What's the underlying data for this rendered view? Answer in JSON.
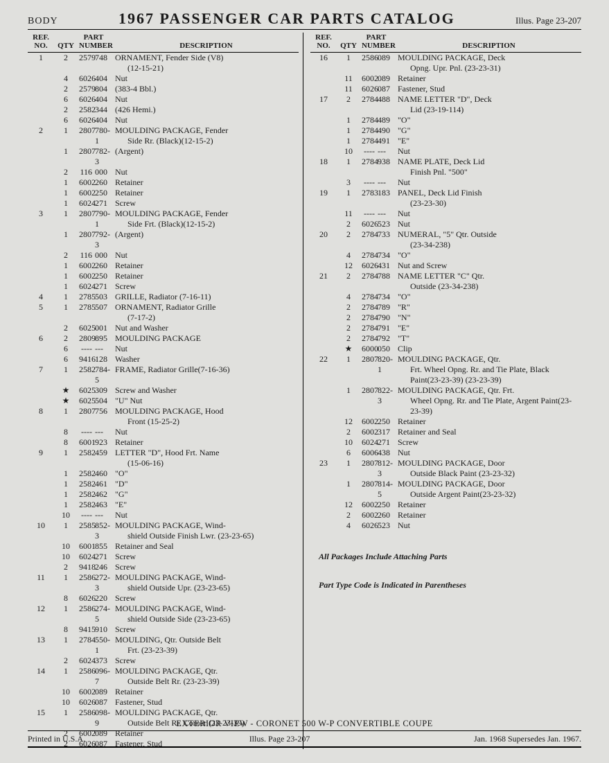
{
  "header": {
    "body_label": "BODY",
    "title": "1967 PASSENGER CAR PARTS CATALOG",
    "illus": "Illus. Page 23-207"
  },
  "table_headers": {
    "ref": "REF. NO.",
    "qty": "QTY",
    "part": "PART NUMBER",
    "desc": "DESCRIPTION"
  },
  "left_rows": [
    {
      "ref": "1",
      "qty": "2",
      "pn1": "2579",
      "pn2": "748",
      "desc": "ORNAMENT, Fender Side (V8)",
      "cont": "(12-15-21)"
    },
    {
      "ref": "",
      "qty": "4",
      "pn1": "6026",
      "pn2": "404",
      "desc": "Nut"
    },
    {
      "ref": "",
      "qty": "2",
      "pn1": "2579",
      "pn2": "804",
      "desc": "(383-4 Bbl.)"
    },
    {
      "ref": "",
      "qty": "6",
      "pn1": "6026",
      "pn2": "404",
      "desc": "Nut"
    },
    {
      "ref": "",
      "qty": "2",
      "pn1": "2582",
      "pn2": "344",
      "desc": "(426 Hemi.)"
    },
    {
      "ref": "",
      "qty": "6",
      "pn1": "6026",
      "pn2": "404",
      "desc": "Nut"
    },
    {
      "ref": "2",
      "qty": "1",
      "pn1": "2807",
      "pn2": "780-1",
      "desc": "MOULDING PACKAGE, Fender",
      "cont": "Side Rr. (Black)(12-15-2)"
    },
    {
      "ref": "",
      "qty": "1",
      "pn1": "2807",
      "pn2": "782-3",
      "desc": "(Argent)"
    },
    {
      "ref": "",
      "qty": "2",
      "pn1": "116",
      "pn2": "000",
      "desc": "Nut"
    },
    {
      "ref": "",
      "qty": "1",
      "pn1": "6002",
      "pn2": "260",
      "desc": "Retainer"
    },
    {
      "ref": "",
      "qty": "1",
      "pn1": "6002",
      "pn2": "250",
      "desc": "Retainer"
    },
    {
      "ref": "",
      "qty": "1",
      "pn1": "6024",
      "pn2": "271",
      "desc": "Screw"
    },
    {
      "ref": "3",
      "qty": "1",
      "pn1": "2807",
      "pn2": "790-1",
      "desc": "MOULDING PACKAGE, Fender",
      "cont": "Side Frt. (Black)(12-15-2)"
    },
    {
      "ref": "",
      "qty": "1",
      "pn1": "2807",
      "pn2": "792-3",
      "desc": "(Argent)"
    },
    {
      "ref": "",
      "qty": "2",
      "pn1": "116",
      "pn2": "000",
      "desc": "Nut"
    },
    {
      "ref": "",
      "qty": "1",
      "pn1": "6002",
      "pn2": "260",
      "desc": "Retainer"
    },
    {
      "ref": "",
      "qty": "1",
      "pn1": "6002",
      "pn2": "250",
      "desc": "Retainer"
    },
    {
      "ref": "",
      "qty": "1",
      "pn1": "6024",
      "pn2": "271",
      "desc": "Screw"
    },
    {
      "ref": "4",
      "qty": "1",
      "pn1": "2785",
      "pn2": "503",
      "desc": "GRILLE, Radiator (7-16-11)"
    },
    {
      "ref": "5",
      "qty": "1",
      "pn1": "2785",
      "pn2": "507",
      "desc": "ORNAMENT, Radiator Grille",
      "cont": "(7-17-2)"
    },
    {
      "ref": "",
      "qty": "2",
      "pn1": "6025",
      "pn2": "001",
      "desc": "Nut and Washer"
    },
    {
      "ref": "6",
      "qty": "2",
      "pn1": "2809",
      "pn2": "895",
      "desc": "MOULDING PACKAGE"
    },
    {
      "ref": "",
      "qty": "6",
      "pn1": "----",
      "pn2": "---",
      "desc": "Nut"
    },
    {
      "ref": "",
      "qty": "6",
      "pn1": "9416",
      "pn2": "128",
      "desc": "Washer"
    },
    {
      "ref": "7",
      "qty": "1",
      "pn1": "2582",
      "pn2": "784-5",
      "desc": "FRAME, Radiator Grille(7-16-36)"
    },
    {
      "ref": "",
      "qty": "★",
      "pn1": "6025",
      "pn2": "309",
      "desc": "Screw and Washer"
    },
    {
      "ref": "",
      "qty": "★",
      "pn1": "6025",
      "pn2": "504",
      "desc": "\"U\" Nut"
    },
    {
      "ref": "8",
      "qty": "1",
      "pn1": "2807",
      "pn2": "756",
      "desc": "MOULDING PACKAGE, Hood",
      "cont": "Front (15-25-2)"
    },
    {
      "ref": "",
      "qty": "8",
      "pn1": "----",
      "pn2": "---",
      "desc": "Nut"
    },
    {
      "ref": "",
      "qty": "8",
      "pn1": "6001",
      "pn2": "923",
      "desc": "Retainer"
    },
    {
      "ref": "9",
      "qty": "1",
      "pn1": "2582",
      "pn2": "459",
      "desc": "LETTER \"D\", Hood Frt. Name",
      "cont": "(15-06-16)"
    },
    {
      "ref": "",
      "qty": "1",
      "pn1": "2582",
      "pn2": "460",
      "desc": "\"O\""
    },
    {
      "ref": "",
      "qty": "1",
      "pn1": "2582",
      "pn2": "461",
      "desc": "\"D\""
    },
    {
      "ref": "",
      "qty": "1",
      "pn1": "2582",
      "pn2": "462",
      "desc": "\"G\""
    },
    {
      "ref": "",
      "qty": "1",
      "pn1": "2582",
      "pn2": "463",
      "desc": "\"E\""
    },
    {
      "ref": "",
      "qty": "10",
      "pn1": "----",
      "pn2": "---",
      "desc": "Nut"
    },
    {
      "ref": "10",
      "qty": "1",
      "pn1": "2585",
      "pn2": "852-3",
      "desc": "MOULDING PACKAGE, Wind-",
      "cont": "shield Outside Finish Lwr. (23-23-65)"
    },
    {
      "ref": "",
      "qty": "10",
      "pn1": "6001",
      "pn2": "855",
      "desc": "Retainer and Seal"
    },
    {
      "ref": "",
      "qty": "10",
      "pn1": "6024",
      "pn2": "271",
      "desc": "Screw"
    },
    {
      "ref": "",
      "qty": "2",
      "pn1": "9418",
      "pn2": "246",
      "desc": "Screw"
    },
    {
      "ref": "11",
      "qty": "1",
      "pn1": "2586",
      "pn2": "272-3",
      "desc": "MOULDING PACKAGE, Wind-",
      "cont": "shield Outside Upr. (23-23-65)"
    },
    {
      "ref": "",
      "qty": "8",
      "pn1": "6026",
      "pn2": "220",
      "desc": "Screw"
    },
    {
      "ref": "12",
      "qty": "1",
      "pn1": "2586",
      "pn2": "274-5",
      "desc": "MOULDING PACKAGE, Wind-",
      "cont": "shield Outside Side (23-23-65)"
    },
    {
      "ref": "",
      "qty": "8",
      "pn1": "9415",
      "pn2": "910",
      "desc": "Screw"
    },
    {
      "ref": "13",
      "qty": "1",
      "pn1": "2784",
      "pn2": "550-1",
      "desc": "MOULDING, Qtr. Outside Belt",
      "cont": "Frt. (23-23-39)"
    },
    {
      "ref": "",
      "qty": "2",
      "pn1": "6024",
      "pn2": "373",
      "desc": "Screw"
    },
    {
      "ref": "14",
      "qty": "1",
      "pn1": "2586",
      "pn2": "096-7",
      "desc": "MOULDING PACKAGE, Qtr.",
      "cont": "Outside Belt Rr. (23-23-39)"
    },
    {
      "ref": "",
      "qty": "10",
      "pn1": "6002",
      "pn2": "089",
      "desc": "Retainer"
    },
    {
      "ref": "",
      "qty": "10",
      "pn1": "6026",
      "pn2": "087",
      "desc": "Fastener, Stud"
    },
    {
      "ref": "15",
      "qty": "1",
      "pn1": "2586",
      "pn2": "098-9",
      "desc": "MOULDING PACKAGE, Qtr.",
      "cont": "Outside Belt Rr. Corner (23-23-39)"
    },
    {
      "ref": "",
      "qty": "2",
      "pn1": "6002",
      "pn2": "089",
      "desc": "Retainer"
    },
    {
      "ref": "",
      "qty": "2",
      "pn1": "6026",
      "pn2": "087",
      "desc": "Fastener, Stud"
    }
  ],
  "right_rows": [
    {
      "ref": "16",
      "qty": "1",
      "pn1": "2586",
      "pn2": "089",
      "desc": "MOULDING PACKAGE, Deck",
      "cont": "Opng. Upr. Pnl. (23-23-31)"
    },
    {
      "ref": "",
      "qty": "11",
      "pn1": "6002",
      "pn2": "089",
      "desc": "Retainer"
    },
    {
      "ref": "",
      "qty": "11",
      "pn1": "6026",
      "pn2": "087",
      "desc": "Fastener, Stud"
    },
    {
      "ref": "17",
      "qty": "2",
      "pn1": "2784",
      "pn2": "488",
      "desc": "NAME LETTER \"D\", Deck",
      "cont": "Lid (23-19-114)"
    },
    {
      "ref": "",
      "qty": "1",
      "pn1": "2784",
      "pn2": "489",
      "desc": "\"O\""
    },
    {
      "ref": "",
      "qty": "1",
      "pn1": "2784",
      "pn2": "490",
      "desc": "\"G\""
    },
    {
      "ref": "",
      "qty": "1",
      "pn1": "2784",
      "pn2": "491",
      "desc": "\"E\""
    },
    {
      "ref": "",
      "qty": "10",
      "pn1": "----",
      "pn2": "---",
      "desc": "Nut"
    },
    {
      "ref": "18",
      "qty": "1",
      "pn1": "2784",
      "pn2": "938",
      "desc": "NAME PLATE, Deck Lid",
      "cont": "Finish Pnl. \"500\""
    },
    {
      "ref": "",
      "qty": "3",
      "pn1": "----",
      "pn2": "---",
      "desc": "Nut"
    },
    {
      "ref": "19",
      "qty": "1",
      "pn1": "2783",
      "pn2": "183",
      "desc": "PANEL, Deck Lid Finish",
      "cont": "(23-23-30)"
    },
    {
      "ref": "",
      "qty": "11",
      "pn1": "----",
      "pn2": "---",
      "desc": "Nut"
    },
    {
      "ref": "",
      "qty": "2",
      "pn1": "6026",
      "pn2": "523",
      "desc": "Nut"
    },
    {
      "ref": "20",
      "qty": "2",
      "pn1": "2784",
      "pn2": "733",
      "desc": "NUMERAL, \"5\" Qtr. Outside",
      "cont": "(23-34-238)"
    },
    {
      "ref": "",
      "qty": "4",
      "pn1": "2784",
      "pn2": "734",
      "desc": "\"O\""
    },
    {
      "ref": "",
      "qty": "12",
      "pn1": "6026",
      "pn2": "431",
      "desc": "Nut and Screw"
    },
    {
      "ref": "21",
      "qty": "2",
      "pn1": "2784",
      "pn2": "788",
      "desc": "NAME LETTER \"C\" Qtr.",
      "cont": "Outside (23-34-238)"
    },
    {
      "ref": "",
      "qty": "4",
      "pn1": "2784",
      "pn2": "734",
      "desc": "\"O\""
    },
    {
      "ref": "",
      "qty": "2",
      "pn1": "2784",
      "pn2": "789",
      "desc": "\"R\""
    },
    {
      "ref": "",
      "qty": "2",
      "pn1": "2784",
      "pn2": "790",
      "desc": "\"N\""
    },
    {
      "ref": "",
      "qty": "2",
      "pn1": "2784",
      "pn2": "791",
      "desc": "\"E\""
    },
    {
      "ref": "",
      "qty": "2",
      "pn1": "2784",
      "pn2": "792",
      "desc": "\"T\""
    },
    {
      "ref": "",
      "qty": "★",
      "pn1": "6000",
      "pn2": "050",
      "desc": "Clip"
    },
    {
      "ref": "22",
      "qty": "1",
      "pn1": "2807",
      "pn2": "820-1",
      "desc": "MOULDING PACKAGE, Qtr.",
      "cont": "Frt. Wheel Opng. Rr. and Tie Plate, Black Paint(23-23-39) (23-23-39)"
    },
    {
      "ref": "",
      "qty": "1",
      "pn1": "2807",
      "pn2": "822-3",
      "desc": "MOULDING PACKAGE, Qtr. Frt.",
      "cont": "Wheel Opng. Rr. and Tie Plate, Argent Paint(23-23-39)"
    },
    {
      "ref": "",
      "qty": "12",
      "pn1": "6002",
      "pn2": "250",
      "desc": "Retainer"
    },
    {
      "ref": "",
      "qty": "2",
      "pn1": "6002",
      "pn2": "317",
      "desc": "Retainer and Seal"
    },
    {
      "ref": "",
      "qty": "10",
      "pn1": "6024",
      "pn2": "271",
      "desc": "Screw"
    },
    {
      "ref": "",
      "qty": "6",
      "pn1": "6006",
      "pn2": "438",
      "desc": "Nut"
    },
    {
      "ref": "23",
      "qty": "1",
      "pn1": "2807",
      "pn2": "812-3",
      "desc": "MOULDING PACKAGE, Door",
      "cont": "Outside Black Paint (23-23-32)"
    },
    {
      "ref": "",
      "qty": "1",
      "pn1": "2807",
      "pn2": "814-5",
      "desc": "MOULDING PACKAGE, Door",
      "cont": "Outside Argent Paint(23-23-32)"
    },
    {
      "ref": "",
      "qty": "12",
      "pn1": "6002",
      "pn2": "250",
      "desc": "Retainer"
    },
    {
      "ref": "",
      "qty": "2",
      "pn1": "6002",
      "pn2": "260",
      "desc": "Retainer"
    },
    {
      "ref": "",
      "qty": "4",
      "pn1": "6026",
      "pn2": "523",
      "desc": "Nut"
    }
  ],
  "notes": {
    "line1": "All Packages Include Attaching Parts",
    "line2": "Part Type Code is Indicated in Parentheses"
  },
  "footer": {
    "caption": "EXTERIOR VIEW - CORONET 500 W-P CONVERTIBLE COUPE",
    "left": "Printed in U.S.A.",
    "center": "Illus. Page 23-207",
    "right": "Jan. 1968 Supersedes Jan. 1967."
  }
}
